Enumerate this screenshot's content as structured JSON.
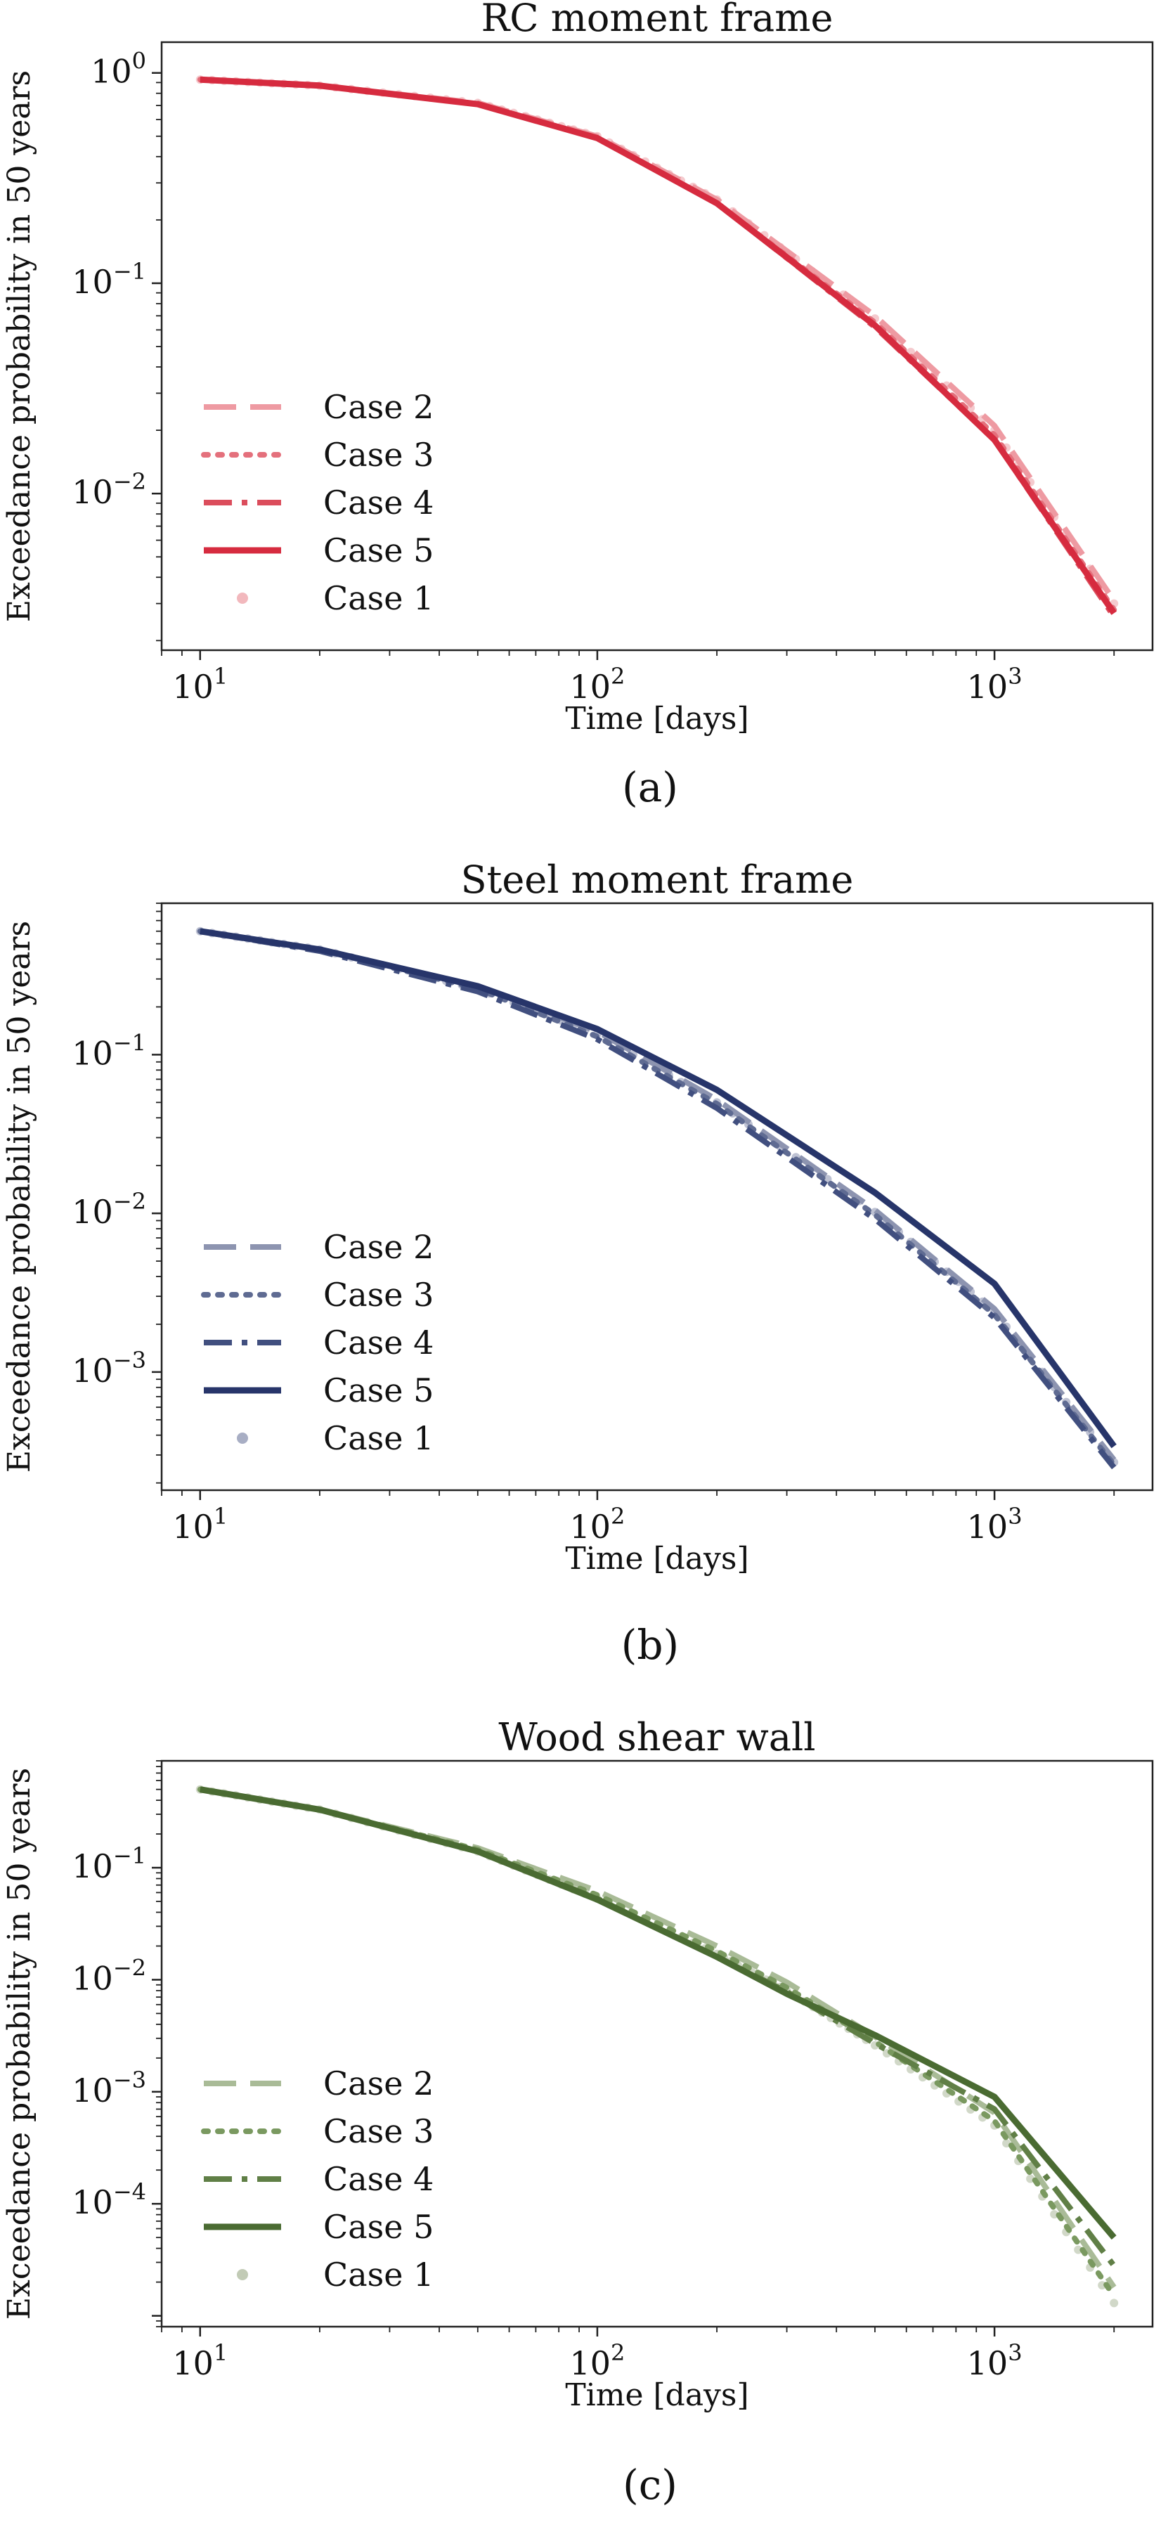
{
  "chart_data": [
    {
      "type": "line",
      "title": "RC moment frame",
      "caption": "(a)",
      "xlabel": "Time [days]",
      "ylabel": "Exceedance probability in 50 years",
      "xscale": "log",
      "yscale": "log",
      "xlim": [
        8,
        2500
      ],
      "ylim": [
        0.0018,
        1.4
      ],
      "xticks": [
        {
          "value": 10,
          "base": "10",
          "exp": "1"
        },
        {
          "value": 100,
          "base": "10",
          "exp": "2"
        },
        {
          "value": 1000,
          "base": "10",
          "exp": "3"
        }
      ],
      "yticks": [
        {
          "value": 1,
          "base": "10",
          "exp": "0"
        },
        {
          "value": 0.1,
          "base": "10",
          "exp": "−1"
        },
        {
          "value": 0.01,
          "base": "10",
          "exp": "−2"
        }
      ],
      "legend_position": "lower-left",
      "grid": false,
      "x": [
        10,
        20,
        50,
        100,
        200,
        500,
        1000,
        2000
      ],
      "series": [
        {
          "name": "Case 2",
          "style": "dashed",
          "color": "#ee9aa2",
          "y": [
            0.93,
            0.87,
            0.72,
            0.5,
            0.25,
            0.07,
            0.021,
            0.0031
          ]
        },
        {
          "name": "Case 3",
          "style": "dotted",
          "color": "#e4707c",
          "y": [
            0.93,
            0.87,
            0.71,
            0.49,
            0.24,
            0.065,
            0.019,
            0.0028
          ]
        },
        {
          "name": "Case 4",
          "style": "dashdot",
          "color": "#db4d5c",
          "y": [
            0.93,
            0.87,
            0.71,
            0.49,
            0.24,
            0.062,
            0.018,
            0.0026
          ]
        },
        {
          "name": "Case 5",
          "style": "solid",
          "color": "#d62b3f",
          "y": [
            0.93,
            0.87,
            0.71,
            0.49,
            0.24,
            0.063,
            0.018,
            0.0027
          ]
        },
        {
          "name": "Case 1",
          "style": "markers",
          "color": "#f2b8bd",
          "y": [
            0.93,
            0.87,
            0.72,
            0.5,
            0.25,
            0.068,
            0.02,
            0.003
          ]
        }
      ]
    },
    {
      "type": "line",
      "title": "Steel moment frame",
      "caption": "(b)",
      "xlabel": "Time [days]",
      "ylabel": "Exceedance probability in 50 years",
      "xscale": "log",
      "yscale": "log",
      "xlim": [
        8,
        2500
      ],
      "ylim": [
        0.00018,
        0.9
      ],
      "xticks": [
        {
          "value": 10,
          "base": "10",
          "exp": "1"
        },
        {
          "value": 100,
          "base": "10",
          "exp": "2"
        },
        {
          "value": 1000,
          "base": "10",
          "exp": "3"
        }
      ],
      "yticks": [
        {
          "value": 0.1,
          "base": "10",
          "exp": "−1"
        },
        {
          "value": 0.01,
          "base": "10",
          "exp": "−2"
        },
        {
          "value": 0.001,
          "base": "10",
          "exp": "−3"
        }
      ],
      "legend_position": "lower-left",
      "grid": false,
      "x": [
        10,
        20,
        50,
        100,
        200,
        500,
        1000,
        2000
      ],
      "series": [
        {
          "name": "Case 2",
          "style": "dashed",
          "color": "#8d94b0",
          "y": [
            0.6,
            0.46,
            0.27,
            0.14,
            0.052,
            0.0105,
            0.0025,
            0.00028
          ]
        },
        {
          "name": "Case 3",
          "style": "dotted",
          "color": "#5f6b92",
          "y": [
            0.6,
            0.46,
            0.26,
            0.13,
            0.049,
            0.0098,
            0.0023,
            0.00026
          ]
        },
        {
          "name": "Case 4",
          "style": "dashdot",
          "color": "#414f7f",
          "y": [
            0.6,
            0.45,
            0.25,
            0.125,
            0.046,
            0.0092,
            0.0022,
            0.00025
          ]
        },
        {
          "name": "Case 5",
          "style": "solid",
          "color": "#27356a",
          "y": [
            0.6,
            0.46,
            0.27,
            0.145,
            0.06,
            0.0135,
            0.0036,
            0.00034
          ]
        },
        {
          "name": "Case 1",
          "style": "markers",
          "color": "#a8aec4",
          "y": [
            0.6,
            0.46,
            0.26,
            0.135,
            0.05,
            0.0102,
            0.0024,
            0.00027
          ]
        }
      ]
    },
    {
      "type": "line",
      "title": "Wood shear wall",
      "caption": "(c)",
      "xlabel": "Time [days]",
      "ylabel": "Exceedance probability in 50 years",
      "xscale": "log",
      "yscale": "log",
      "xlim": [
        8,
        2500
      ],
      "ylim": [
        8e-06,
        0.9
      ],
      "xticks": [
        {
          "value": 10,
          "base": "10",
          "exp": "1"
        },
        {
          "value": 100,
          "base": "10",
          "exp": "2"
        },
        {
          "value": 1000,
          "base": "10",
          "exp": "3"
        }
      ],
      "yticks": [
        {
          "value": 0.1,
          "base": "10",
          "exp": "−1"
        },
        {
          "value": 0.01,
          "base": "10",
          "exp": "−2"
        },
        {
          "value": 0.001,
          "base": "10",
          "exp": "−3"
        },
        {
          "value": 0.0001,
          "base": "10",
          "exp": "−4"
        }
      ],
      "legend_position": "lower-left",
      "grid": false,
      "x": [
        10,
        20,
        50,
        100,
        200,
        300,
        500,
        1000,
        2000
      ],
      "series": [
        {
          "name": "Case 2",
          "style": "dashed",
          "color": "#a9bb97",
          "y": [
            0.5,
            0.33,
            0.15,
            0.062,
            0.02,
            0.0095,
            0.0031,
            0.00065,
            1.8e-05
          ]
        },
        {
          "name": "Case 3",
          "style": "dotted",
          "color": "#7a9960",
          "y": [
            0.5,
            0.33,
            0.145,
            0.057,
            0.018,
            0.0085,
            0.0028,
            0.00055,
            1.5e-05
          ]
        },
        {
          "name": "Case 4",
          "style": "dashdot",
          "color": "#607f46",
          "y": [
            0.5,
            0.33,
            0.14,
            0.053,
            0.016,
            0.0078,
            0.0027,
            0.0007,
            2.8e-05
          ]
        },
        {
          "name": "Case 5",
          "style": "solid",
          "color": "#4a6b32",
          "y": [
            0.5,
            0.33,
            0.14,
            0.052,
            0.016,
            0.0075,
            0.0032,
            0.0009,
            5e-05
          ]
        },
        {
          "name": "Case 1",
          "style": "markers",
          "color": "#c2cbb6",
          "y": [
            0.5,
            0.33,
            0.14,
            0.053,
            0.017,
            0.008,
            0.0026,
            0.0005,
            1.3e-05
          ]
        }
      ]
    }
  ]
}
